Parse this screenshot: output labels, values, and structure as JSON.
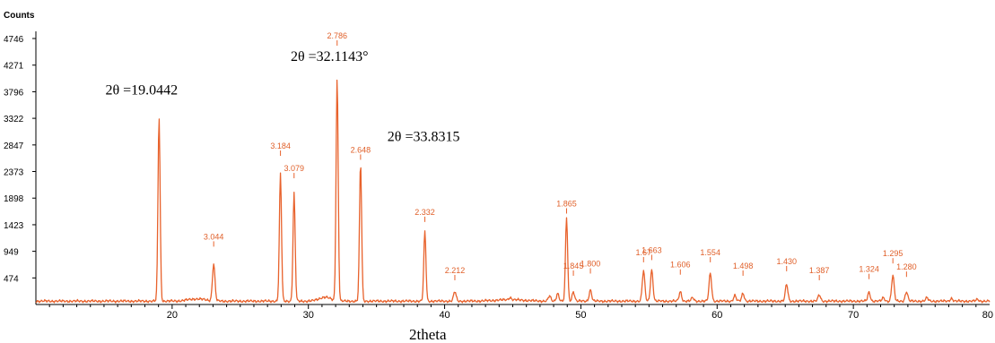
{
  "chart_data": {
    "type": "line",
    "title": "",
    "ylabel": "Counts",
    "xlabel": "2theta",
    "xlim": [
      10,
      80
    ],
    "ylim": [
      0,
      4746
    ],
    "x_ticks": [
      20,
      30,
      40,
      50,
      60,
      70,
      80
    ],
    "y_ticks": [
      474,
      949,
      1423,
      1898,
      2373,
      2847,
      3322,
      3796,
      4271,
      4746
    ],
    "series_color": "#e8622c",
    "baseline_counts": 60,
    "series": [
      {
        "values": [
          {
            "x": 19.04,
            "y": 3350
          },
          {
            "x": 23.05,
            "y": 720
          },
          {
            "x": 27.95,
            "y": 2330
          },
          {
            "x": 28.95,
            "y": 1980
          },
          {
            "x": 32.11,
            "y": 4030
          },
          {
            "x": 33.83,
            "y": 2530
          },
          {
            "x": 38.55,
            "y": 1310
          },
          {
            "x": 40.75,
            "y": 230
          },
          {
            "x": 44.8,
            "y": 100
          },
          {
            "x": 47.7,
            "y": 150
          },
          {
            "x": 48.3,
            "y": 200
          },
          {
            "x": 48.95,
            "y": 1560
          },
          {
            "x": 49.45,
            "y": 230
          },
          {
            "x": 50.7,
            "y": 260
          },
          {
            "x": 54.6,
            "y": 600
          },
          {
            "x": 55.2,
            "y": 620
          },
          {
            "x": 57.3,
            "y": 230
          },
          {
            "x": 58.2,
            "y": 120
          },
          {
            "x": 59.5,
            "y": 560
          },
          {
            "x": 61.3,
            "y": 160
          },
          {
            "x": 61.9,
            "y": 200
          },
          {
            "x": 65.1,
            "y": 360
          },
          {
            "x": 67.5,
            "y": 170
          },
          {
            "x": 71.15,
            "y": 220
          },
          {
            "x": 72.2,
            "y": 120
          },
          {
            "x": 72.9,
            "y": 520
          },
          {
            "x": 73.9,
            "y": 230
          },
          {
            "x": 75.4,
            "y": 120
          },
          {
            "x": 77.2,
            "y": 110
          },
          {
            "x": 79.1,
            "y": 90
          }
        ]
      }
    ],
    "peak_labels": [
      {
        "text": "2.786",
        "x": 32.11,
        "y": 4746
      },
      {
        "text": "3.044",
        "x": 23.05,
        "y": 1160
      },
      {
        "text": "3.184",
        "x": 27.95,
        "y": 2780
      },
      {
        "text": "3.079",
        "x": 28.95,
        "y": 2380
      },
      {
        "text": "2.648",
        "x": 33.83,
        "y": 2710
      },
      {
        "text": "2.332",
        "x": 38.55,
        "y": 1600
      },
      {
        "text": "2.212",
        "x": 40.75,
        "y": 560
      },
      {
        "text": "1.865",
        "x": 48.95,
        "y": 1750
      },
      {
        "text": "1.845",
        "x": 49.45,
        "y": 640
      },
      {
        "text": "1.800",
        "x": 50.7,
        "y": 680
      },
      {
        "text": "1.67",
        "x": 54.6,
        "y": 880
      },
      {
        "text": "1.663",
        "x": 55.2,
        "y": 920
      },
      {
        "text": "1.606",
        "x": 57.3,
        "y": 660
      },
      {
        "text": "1.554",
        "x": 59.5,
        "y": 880
      },
      {
        "text": "1.498",
        "x": 61.9,
        "y": 640
      },
      {
        "text": "1.430",
        "x": 65.1,
        "y": 720
      },
      {
        "text": "1.387",
        "x": 67.5,
        "y": 560
      },
      {
        "text": "1.324",
        "x": 71.15,
        "y": 580
      },
      {
        "text": "1.295",
        "x": 72.9,
        "y": 860
      },
      {
        "text": "1.280",
        "x": 73.9,
        "y": 620
      }
    ],
    "annotations": [
      {
        "text": "2θ =19.0442",
        "x": 15.1,
        "y": 3750
      },
      {
        "text": "2θ =32.1143°",
        "x": 28.7,
        "y": 4350
      },
      {
        "text": "2θ =33.8315",
        "x": 35.8,
        "y": 2920
      }
    ],
    "grid": false,
    "legend": "none"
  }
}
